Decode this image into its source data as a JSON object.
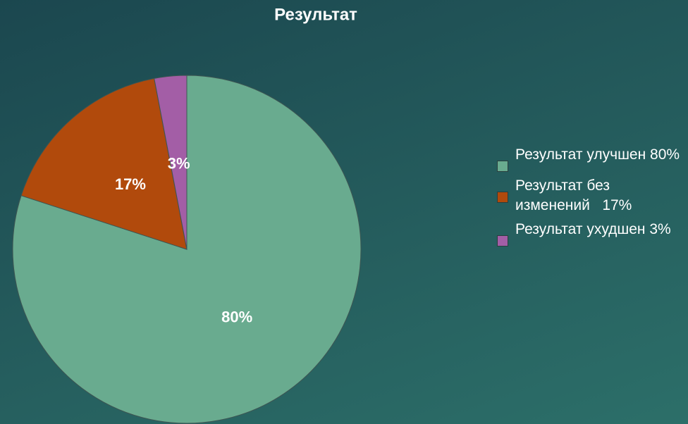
{
  "chart_data": {
    "type": "pie",
    "title": "Результат",
    "categories": [
      "Результат улучшен 80%",
      "Результат без изменений   17%",
      "Результат ухудшен 3%"
    ],
    "values": [
      80,
      17,
      3
    ],
    "value_labels": [
      "80%",
      "17%",
      "3%"
    ],
    "colors": [
      "#69ab8f",
      "#b14a0c",
      "#a35ea6"
    ],
    "legend": "right"
  }
}
